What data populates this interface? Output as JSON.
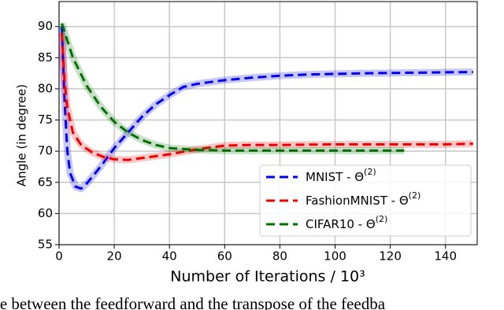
{
  "chart_data": {
    "type": "line",
    "xlabel": "Number of Iterations / 10³",
    "ylabel": "Angle (in degree)",
    "caption": "le between the feedforward and the transpose of the feedba",
    "xlim": [
      0,
      151.5
    ],
    "ylim": [
      55,
      94
    ],
    "xticks": [
      0,
      20,
      40,
      60,
      80,
      100,
      120,
      140
    ],
    "yticks": [
      55,
      60,
      65,
      70,
      75,
      80,
      85,
      90
    ],
    "grid": true,
    "legend": "lower right",
    "series": [
      {
        "name": "MNIST  -  Θ(2)",
        "color": "#0000ee",
        "x": [
          1,
          2,
          3,
          4,
          6,
          8,
          10,
          15,
          20,
          25,
          30,
          35,
          40,
          45,
          50,
          60,
          70,
          80,
          90,
          100,
          110,
          120,
          130,
          140,
          150
        ],
        "values": [
          90,
          78,
          70,
          66.5,
          64.3,
          64,
          64.8,
          67.5,
          70.5,
          73,
          75.5,
          77.5,
          79,
          80.3,
          80.8,
          81.4,
          81.8,
          82.1,
          82.3,
          82.4,
          82.5,
          82.55,
          82.6,
          82.65,
          82.7
        ]
      },
      {
        "name": "FashionMNIST  -  Θ(2)",
        "color": "#ee0000",
        "x": [
          1,
          2,
          3,
          5,
          8,
          12,
          16,
          20,
          25,
          30,
          40,
          50,
          60,
          70,
          80,
          100,
          120,
          140,
          150
        ],
        "values": [
          89,
          81,
          77,
          73,
          71,
          69.8,
          69.1,
          68.7,
          68.6,
          68.9,
          69.5,
          70.3,
          70.9,
          71,
          71,
          71.1,
          71.1,
          71.1,
          71.2
        ]
      },
      {
        "name": "CIFAR10  -  Θ(2)",
        "color": "#007000",
        "x": [
          1,
          5,
          10,
          15,
          20,
          25,
          30,
          35,
          40,
          50,
          60,
          80,
          100,
          125
        ],
        "values": [
          90.5,
          85,
          80.5,
          77.2,
          74.7,
          73,
          71.8,
          71,
          70.5,
          70.2,
          70.1,
          70.1,
          70.1,
          70.1
        ]
      }
    ]
  }
}
